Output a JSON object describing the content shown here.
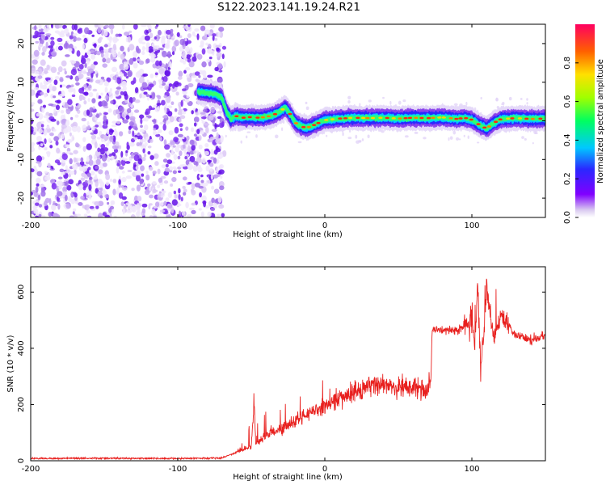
{
  "title": "S122.2023.141.19.24.R21",
  "colors": {
    "spectrogram_cmap": [
      "#ffffff",
      "#e8d8f8",
      "#a070e8",
      "#6a00e8",
      "#2020ff",
      "#00c8ff",
      "#00ff80",
      "#c8ff00",
      "#ffd000",
      "#ff4000",
      "#ff0060"
    ],
    "snr_line": "#e8201e",
    "axes": "#000000"
  },
  "chart_data": [
    {
      "type": "heatmap",
      "title": "S122.2023.141.19.24.R21",
      "xlabel": "Height of straight line (km)",
      "ylabel": "Frequency (Hz)",
      "xlim": [
        -200,
        150
      ],
      "ylim": [
        -25,
        25
      ],
      "xticks": [
        "-200",
        "-100",
        "0",
        "100"
      ],
      "xtick_values": [
        -200,
        -100,
        0,
        100
      ],
      "yticks": [
        "20",
        "10",
        "0",
        "-10",
        "-20"
      ],
      "ytick_values": [
        20,
        10,
        0,
        -10,
        -20
      ],
      "colorbar": {
        "label": "Normalized spectral amplitude",
        "range": [
          0,
          1
        ],
        "ticks": [
          "0.0",
          "0.2",
          "0.4",
          "0.6",
          "0.8"
        ],
        "tick_values": [
          0.0,
          0.2,
          0.4,
          0.6,
          0.8
        ]
      },
      "noise_region_x": [
        -200,
        -68
      ],
      "signal_ridge": {
        "x": [
          -86,
          -80,
          -75,
          -70,
          -67,
          -64,
          -60,
          -55,
          -50,
          -45,
          -40,
          -35,
          -30,
          -27,
          -24,
          -20,
          -16,
          -12,
          -8,
          -4,
          0,
          10,
          20,
          30,
          40,
          50,
          60,
          70,
          80,
          90,
          95,
          100,
          105,
          110,
          115,
          120,
          130,
          140,
          150
        ],
        "y": [
          7.5,
          7.2,
          7.0,
          6.0,
          2.5,
          0.5,
          1.2,
          0.8,
          1.0,
          0.8,
          1.0,
          1.5,
          2.5,
          3.5,
          2.0,
          -0.5,
          -1.5,
          -1.8,
          -1.2,
          -0.5,
          0.2,
          0.6,
          0.8,
          0.7,
          0.8,
          0.6,
          0.8,
          0.7,
          0.9,
          0.5,
          0.8,
          0.3,
          -1.0,
          -2.0,
          -0.5,
          0.5,
          0.7,
          0.5,
          0.6
        ]
      }
    },
    {
      "type": "line",
      "xlabel": "Height of straight line (km)",
      "ylabel": "SNR (10 * v/v)",
      "xlim": [
        -200,
        150
      ],
      "ylim": [
        0,
        690
      ],
      "xticks": [
        "-200",
        "-100",
        "0",
        "100"
      ],
      "xtick_values": [
        -200,
        -100,
        0,
        100
      ],
      "yticks": [
        "0",
        "200",
        "400",
        "600"
      ],
      "ytick_values": [
        0,
        200,
        400,
        600
      ],
      "series": [
        {
          "x": [
            -200,
            -150,
            -100,
            -70,
            -60,
            -50,
            -48,
            -47,
            -45,
            -40,
            -30,
            -20,
            -10,
            0,
            10,
            20,
            30,
            40,
            50,
            60,
            70,
            72,
            73,
            80,
            90,
            95,
            100,
            102,
            104,
            106,
            108,
            110,
            115,
            120,
            130,
            140,
            150
          ],
          "y": [
            8,
            9,
            8,
            10,
            30,
            50,
            210,
            60,
            70,
            90,
            110,
            140,
            170,
            195,
            220,
            245,
            265,
            270,
            262,
            260,
            258,
            262,
            470,
            465,
            460,
            480,
            500,
            400,
            620,
            330,
            440,
            610,
            440,
            520,
            445,
            430,
            445
          ]
        }
      ]
    }
  ]
}
